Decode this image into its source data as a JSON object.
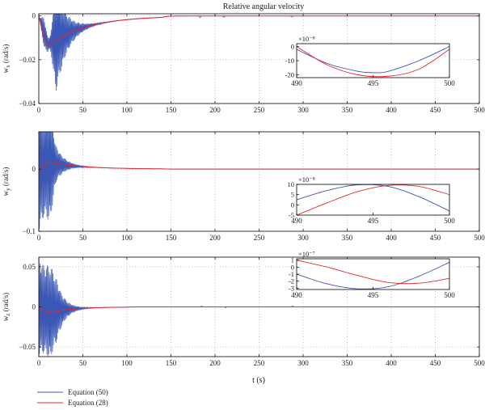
{
  "figure": {
    "title": "Relative angular velocity",
    "xlabel": "t (s)",
    "colors": {
      "equation50": "#3a57b5",
      "equation28": "#e8262b"
    },
    "legend": [
      {
        "label": "Equation (50)",
        "color": "#3a57b5"
      },
      {
        "label": "Equation (28)",
        "color": "#e8262b"
      }
    ]
  },
  "chart_data": [
    {
      "type": "line",
      "ylabel_base": "w",
      "ylabel_sub": "x",
      "ylabel_unit": " (rad/s)",
      "xlim": [
        0,
        500
      ],
      "ylim": [
        -0.04,
        0.001
      ],
      "xticks": [
        0,
        50,
        100,
        150,
        200,
        250,
        300,
        350,
        400,
        450,
        500
      ],
      "yticks": [
        0,
        -0.02,
        -0.04
      ],
      "ytick_labels": [
        "0",
        "−0.02",
        "−0.04"
      ],
      "grid": true,
      "series": [
        {
          "name": "Equation (50)",
          "kind": "oscillation",
          "params": {
            "amp0": 0.0001,
            "amp_growth_peak": 0.024,
            "peak_t": 20,
            "decay": 12,
            "freq": 0.95,
            "baseline_min": -0.013,
            "baseline_min_t": 10,
            "baseline_tau": 45,
            "settle_t": 140
          },
          "spikes": [
            {
              "t": 183,
              "v": -0.0008
            },
            {
              "t": 210,
              "v": -0.0006
            },
            {
              "t": 287,
              "v": -0.0004
            }
          ]
        },
        {
          "name": "Equation (28)",
          "kind": "smooth",
          "params": {
            "start": 0,
            "min": -0.0135,
            "min_t": 12,
            "tau": 42,
            "settle_t": 140
          }
        }
      ],
      "inset": {
        "exponent": "×10⁻⁸",
        "xlim": [
          490,
          500
        ],
        "ylim": [
          -22,
          2
        ],
        "xticks": [
          490,
          495,
          500
        ],
        "yticks": [
          0,
          -10,
          -20
        ],
        "series": [
          {
            "name": "Equation (50)",
            "x": [
              490,
              492,
              494,
              495,
              496,
              498,
              500
            ],
            "y": [
              -2,
              -12,
              -17.5,
              -18.5,
              -17.5,
              -10,
              0
            ]
          },
          {
            "name": "Equation (28)",
            "x": [
              490,
              492,
              494,
              496,
              498,
              500
            ],
            "y": [
              0,
              -13,
              -20,
              -21,
              -16,
              -2
            ]
          }
        ]
      }
    },
    {
      "type": "line",
      "ylabel_base": "w",
      "ylabel_sub": "y",
      "ylabel_unit": " (rad/s)",
      "xlim": [
        0,
        500
      ],
      "ylim": [
        -0.1,
        0.06
      ],
      "xticks": [
        0,
        50,
        100,
        150,
        200,
        250,
        300,
        350,
        400,
        450,
        500
      ],
      "yticks": [
        0,
        -0.1
      ],
      "ytick_labels": [
        "0",
        "−0.1"
      ],
      "grid": true,
      "series": [
        {
          "name": "Equation (50)",
          "kind": "oscillation",
          "params": {
            "amp0": 0.1,
            "amp_growth_peak": 0.028,
            "peak_t": 20,
            "decay": 10,
            "freq": 0.95,
            "baseline_min": 0.01,
            "baseline_min_t": 12,
            "baseline_tau": 40,
            "settle_t": 140
          },
          "spikes": []
        },
        {
          "name": "Equation (28)",
          "kind": "smooth",
          "params": {
            "start": 0,
            "min": 0.01,
            "min_t": 14,
            "tau": 40,
            "settle_t": 140
          }
        }
      ],
      "inset": {
        "exponent": "×10⁻⁸",
        "xlim": [
          490,
          500
        ],
        "ylim": [
          -5,
          10
        ],
        "xticks": [
          490,
          495,
          500
        ],
        "yticks": [
          10,
          5,
          0,
          -5
        ],
        "series": [
          {
            "name": "Equation (50)",
            "x": [
              490,
              492,
              494,
              496,
              498,
              500
            ],
            "y": [
              2.5,
              7,
              9.8,
              9,
              4,
              -3
            ]
          },
          {
            "name": "Equation (28)",
            "x": [
              490,
              492,
              494,
              496,
              498,
              500
            ],
            "y": [
              -5,
              1,
              6.5,
              9.5,
              9,
              5
            ]
          }
        ]
      }
    },
    {
      "type": "line",
      "ylabel_base": "w",
      "ylabel_sub": "z",
      "ylabel_unit": " (rad/s)",
      "xlim": [
        0,
        500
      ],
      "ylim": [
        -0.062,
        0.062
      ],
      "xticks": [
        0,
        50,
        100,
        150,
        200,
        250,
        300,
        350,
        400,
        450,
        500
      ],
      "yticks": [
        0.05,
        0,
        -0.05
      ],
      "ytick_labels": [
        "0.05",
        "0",
        "−0.05"
      ],
      "grid": true,
      "series": [
        {
          "name": "Equation (50)",
          "kind": "oscillation",
          "params": {
            "amp0": 0.06,
            "amp_growth_peak": 0.04,
            "peak_t": 20,
            "decay": 9,
            "freq": 0.95,
            "baseline_min": -0.006,
            "baseline_min_t": 12,
            "baseline_tau": 30,
            "settle_t": 100
          },
          "spikes": [
            {
              "t": 185,
              "v": 0.001
            },
            {
              "t": 212,
              "v": -0.001
            },
            {
              "t": 288,
              "v": 0.001
            }
          ]
        },
        {
          "name": "Equation (28)",
          "kind": "smooth",
          "params": {
            "start": 0,
            "min": -0.007,
            "min_t": 12,
            "tau": 28,
            "settle_t": 100
          }
        }
      ],
      "inset": {
        "exponent": "×10⁻⁷",
        "xlim": [
          490,
          500
        ],
        "ylim": [
          -3.2,
          1.2
        ],
        "xticks": [
          490,
          495,
          500
        ],
        "yticks": [
          1,
          0,
          -1,
          -2,
          -3
        ],
        "series": [
          {
            "name": "Equation (50)",
            "x": [
              490,
              492,
              494,
              496,
              498,
              500
            ],
            "y": [
              -1,
              -2.4,
              -3.1,
              -2.8,
              -1.3,
              0.7
            ]
          },
          {
            "name": "Equation (28)",
            "x": [
              490,
              492,
              494,
              496,
              498,
              500
            ],
            "y": [
              1,
              0,
              -1.2,
              -2.2,
              -2.3,
              -1.6
            ]
          }
        ]
      }
    }
  ]
}
